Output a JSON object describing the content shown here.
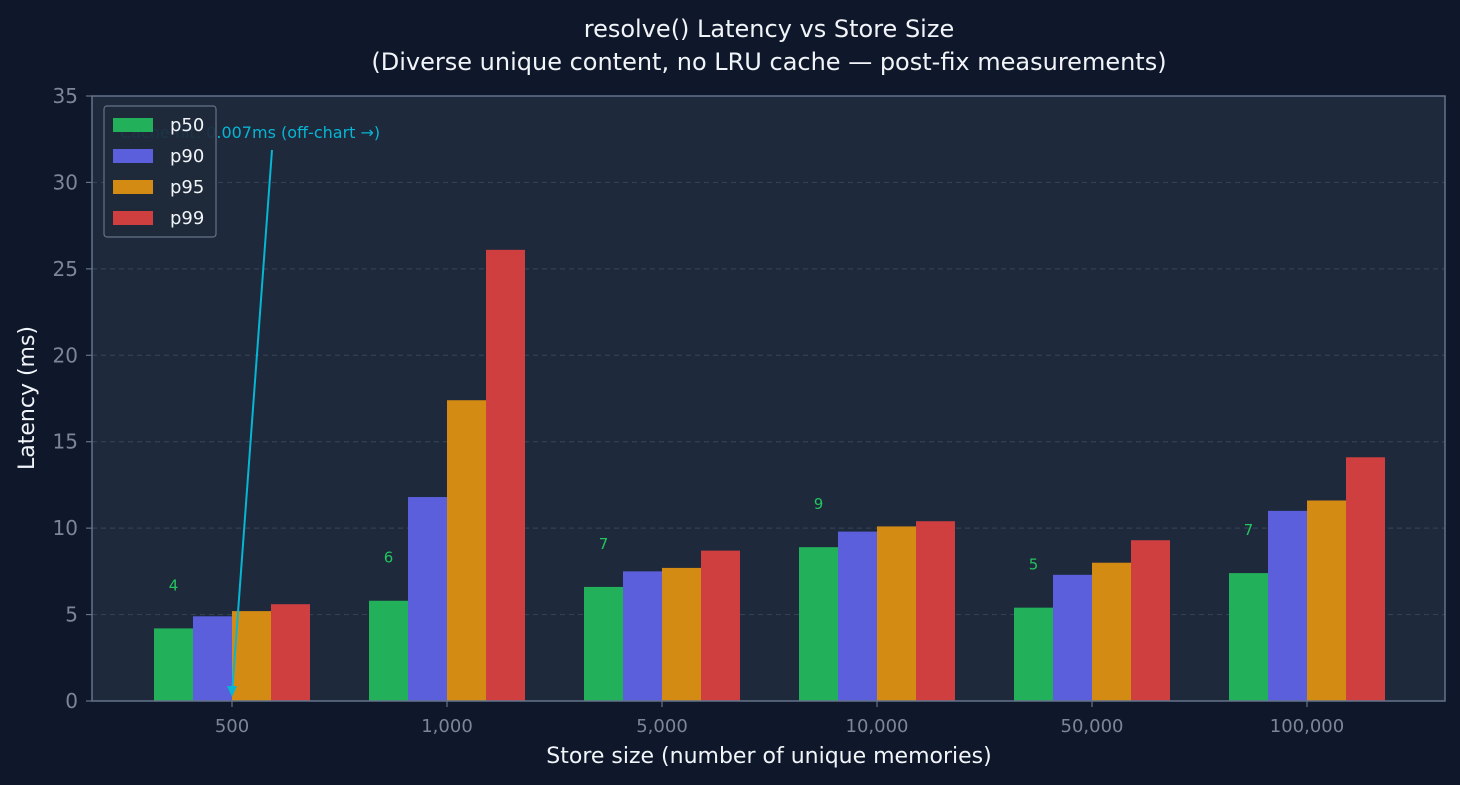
{
  "chart_data": {
    "type": "bar",
    "title": "resolve() Latency vs Store Size",
    "subtitle": "(Diverse unique content, no LRU cache — post-fix measurements)",
    "xlabel": "Store size (number of unique memories)",
    "ylabel": "Latency (ms)",
    "ylim": [
      0,
      35
    ],
    "yticks": [
      "0",
      "5",
      "10",
      "15",
      "20",
      "25",
      "30",
      "35"
    ],
    "categories": [
      "500",
      "1,000",
      "5,000",
      "10,000",
      "50,000",
      "100,000"
    ],
    "series": [
      {
        "name": "p50",
        "color": "#22b05a",
        "values": [
          4.2,
          5.8,
          6.6,
          8.9,
          5.4,
          7.4
        ]
      },
      {
        "name": "p90",
        "color": "#5b5fdb",
        "values": [
          4.9,
          11.8,
          7.5,
          9.8,
          7.3,
          11.0
        ]
      },
      {
        "name": "p95",
        "color": "#d48b14",
        "values": [
          5.2,
          17.4,
          7.7,
          10.1,
          8.0,
          11.6
        ]
      },
      {
        "name": "p99",
        "color": "#d03f40",
        "values": [
          5.6,
          26.1,
          8.7,
          10.4,
          9.3,
          14.1
        ]
      }
    ],
    "data_labels": [
      "4",
      "6",
      "7",
      "9",
      "5",
      "7"
    ],
    "grid": "horizontal-dashed",
    "legend": "top-left",
    "annotation": {
      "text": "Cache hit: 0.007ms (off-chart →)",
      "color": "#06b6d4",
      "target_category": "500",
      "target_value": 0
    }
  }
}
